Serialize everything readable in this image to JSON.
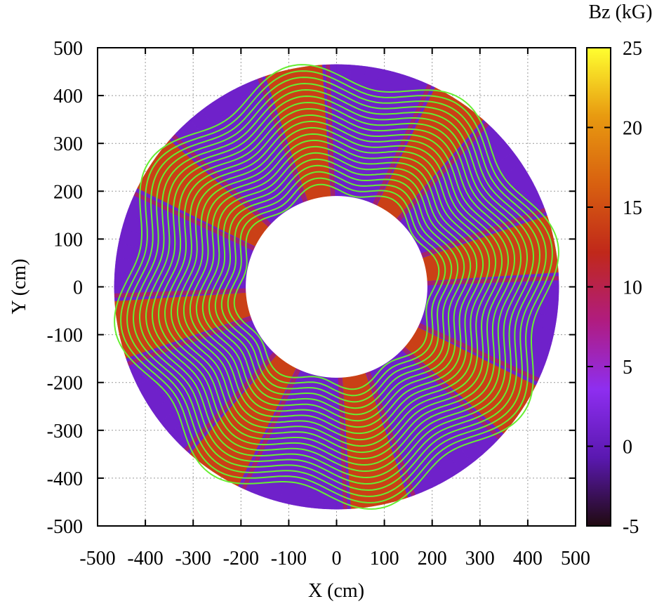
{
  "chart_data": {
    "type": "heatmap",
    "title": "",
    "xlabel": "X (cm)",
    "ylabel": "Y (cm)",
    "xlim": [
      -500,
      500
    ],
    "ylim": [
      -500,
      500
    ],
    "x_ticks": [
      "-500",
      "-400",
      "-300",
      "-200",
      "-100",
      "0",
      "100",
      "200",
      "300",
      "400",
      "500"
    ],
    "y_ticks": [
      "-500",
      "-400",
      "-300",
      "-200",
      "-100",
      "0",
      "100",
      "200",
      "300",
      "400",
      "500"
    ],
    "grid": true,
    "colorbar": {
      "label": "Bz (kG)",
      "range": [
        -5,
        25
      ],
      "ticks": [
        "-5",
        "0",
        "5",
        "10",
        "15",
        "20",
        "25"
      ],
      "tick_values": [
        -5,
        0,
        5,
        10,
        15,
        20,
        25
      ],
      "colors": [
        "#200a10",
        "#5a18b0",
        "#8e2ef0",
        "#b01c80",
        "#c0281a",
        "#d86010",
        "#e89a10",
        "#ffff30"
      ]
    },
    "ring": {
      "inner_radius": 190,
      "outer_radius": 465,
      "sectors": 8,
      "hill_field_kG": 14,
      "valley_field_kG": 1
    },
    "trajectory_color": "#66ee33"
  }
}
